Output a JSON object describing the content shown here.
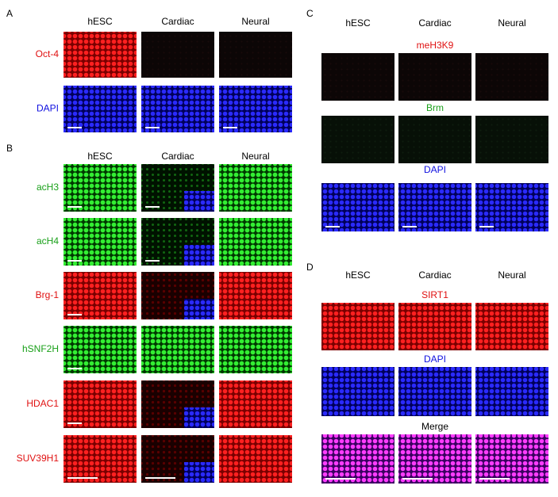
{
  "panels": [
    {
      "letter": "A",
      "columns": [
        "hESC",
        "Cardiac",
        "Neural"
      ],
      "rows": [
        "Oct-4",
        "DAPI"
      ]
    },
    {
      "letter": "B",
      "columns": [
        "hESC",
        "Cardiac",
        "Neural"
      ],
      "rows": [
        "acH3",
        "acH4",
        "Brg-1",
        "hSNF2H",
        "HDAC1",
        "SUV39H1"
      ]
    },
    {
      "letter": "C",
      "columns": [
        "hESC",
        "Cardiac",
        "Neural"
      ],
      "rows": [
        "meH3K9",
        "Brm",
        "DAPI"
      ]
    },
    {
      "letter": "D",
      "columns": [
        "hESC",
        "Cardiac",
        "Neural"
      ],
      "rows": [
        "SIRT1",
        "DAPI",
        "Merge"
      ]
    }
  ]
}
